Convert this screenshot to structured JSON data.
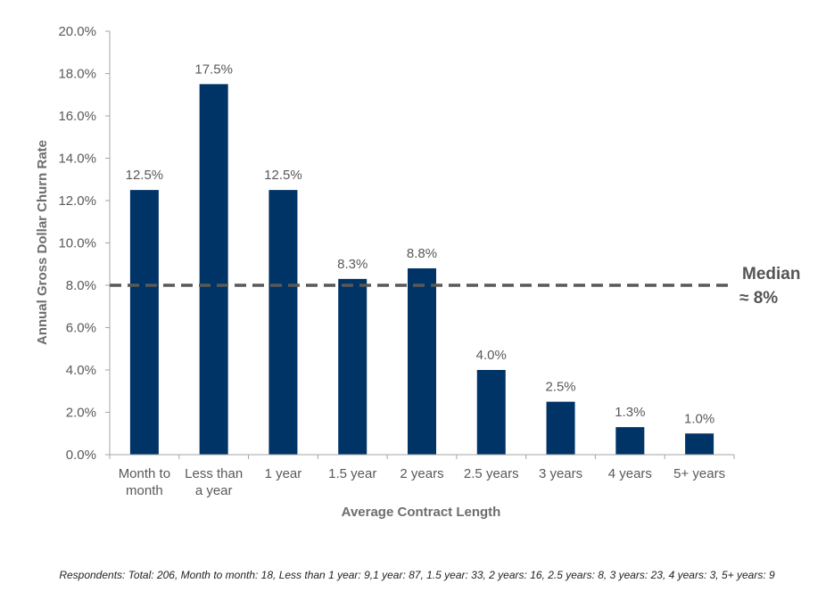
{
  "chart_data": {
    "type": "bar",
    "categories": [
      [
        "Month to",
        "month"
      ],
      [
        "Less than",
        "a year"
      ],
      [
        "1 year"
      ],
      [
        "1.5 year"
      ],
      [
        "2 years"
      ],
      [
        "2.5 years"
      ],
      [
        "3 years"
      ],
      [
        "4 years"
      ],
      [
        "5+ years"
      ]
    ],
    "values": [
      12.5,
      17.5,
      12.5,
      8.3,
      8.8,
      4.0,
      2.5,
      1.3,
      1.0
    ],
    "data_labels": [
      "12.5%",
      "17.5%",
      "12.5%",
      "8.3%",
      "8.8%",
      "4.0%",
      "2.5%",
      "1.3%",
      "1.0%"
    ],
    "ylim": [
      0,
      20
    ],
    "ytick_values": [
      0,
      2,
      4,
      6,
      8,
      10,
      12,
      14,
      16,
      18,
      20
    ],
    "ytick_labels": [
      "0.0%",
      "2.0%",
      "4.0%",
      "6.0%",
      "8.0%",
      "10.0%",
      "12.0%",
      "14.0%",
      "16.0%",
      "18.0%",
      "20.0%"
    ],
    "xlabel": "Average Contract Length",
    "ylabel": "Annual Gross Dollar Churn Rate",
    "grid": false,
    "median_line": {
      "value": 8,
      "label_line1": "Median",
      "label_line2": "≈ 8%"
    },
    "colors": {
      "bar": "#003366",
      "median": "#595959",
      "axis": "#a6a6a6"
    }
  },
  "footnote": "Respondents: Total: 206, Month to month: 18, Less than 1 year: 9,1 year: 87, 1.5 year: 33, 2 years: 16, 2.5 years: 8, 3 years: 23, 4 years: 3, 5+ years: 9"
}
